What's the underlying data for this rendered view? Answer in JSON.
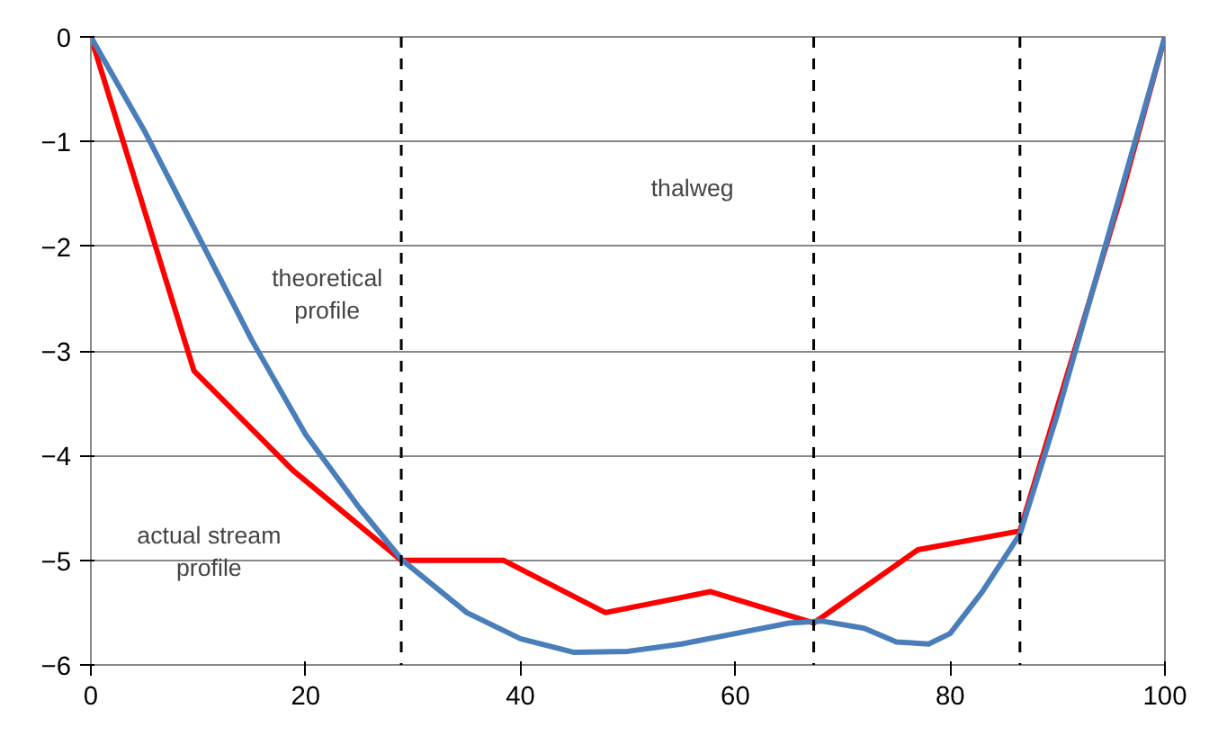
{
  "chart_data": {
    "type": "line",
    "xlim": [
      0,
      100
    ],
    "ylim": [
      -6,
      0
    ],
    "xticks": [
      0,
      20,
      40,
      60,
      80,
      100
    ],
    "yticks": [
      -6,
      -5,
      -4,
      -3,
      -2,
      -1,
      0
    ],
    "grid": "y",
    "marker": "none",
    "line_style": "solid",
    "series": [
      {
        "color": "#ff0000",
        "x": [
          0,
          9.6,
          18.8,
          28.9,
          38.4,
          47.9,
          57.7,
          67.3,
          77,
          86.5,
          95.9,
          100
        ],
        "values": [
          0,
          -3.19,
          -4.14,
          -5.0,
          -5.0,
          -5.5,
          -5.3,
          -5.6,
          -4.9,
          -4.72,
          -1.53,
          0
        ]
      },
      {
        "color": "#4a7ebb",
        "x": [
          0,
          5,
          10,
          15,
          20,
          25,
          29,
          35,
          40,
          45,
          50,
          55,
          60,
          65,
          68,
          72,
          75,
          78,
          80,
          83,
          86.5,
          90,
          95,
          100
        ],
        "values": [
          0,
          -0.9,
          -1.9,
          -2.9,
          -3.8,
          -4.5,
          -5.0,
          -5.5,
          -5.75,
          -5.88,
          -5.87,
          -5.8,
          -5.7,
          -5.6,
          -5.58,
          -5.65,
          -5.78,
          -5.8,
          -5.7,
          -5.3,
          -4.75,
          -3.6,
          -1.8,
          0
        ]
      }
    ],
    "ref_lines": [
      {
        "axis": "x",
        "value": 28.9,
        "color": "#000000",
        "line_style": "dashed"
      },
      {
        "axis": "x",
        "value": 67.3,
        "color": "#000000",
        "line_style": "dashed"
      },
      {
        "axis": "x",
        "value": 86.5,
        "color": "#000000",
        "line_style": "dashed"
      }
    ],
    "annotations": [
      "thalweg",
      "theoretical\nprofile",
      "actual stream\nprofile"
    ]
  }
}
